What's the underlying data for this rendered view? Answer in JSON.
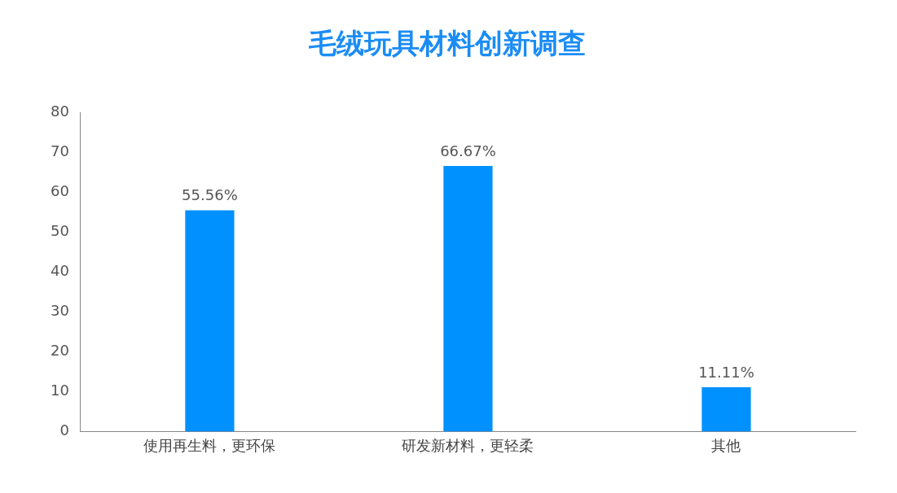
{
  "chart_data": {
    "type": "bar",
    "title": "毛绒玩具材料创新调查",
    "categories": [
      "使用再生料，更环保",
      "研发新材料，更轻柔",
      "其他"
    ],
    "values": [
      55.56,
      66.67,
      11.11
    ],
    "value_labels": [
      "55.56%",
      "66.67%",
      "11.11%"
    ],
    "color": "#0091ff",
    "ylim": [
      0,
      80
    ],
    "yticks": [
      0,
      10,
      20,
      30,
      40,
      50,
      60,
      70,
      80
    ],
    "grid": false,
    "legend": false
  }
}
